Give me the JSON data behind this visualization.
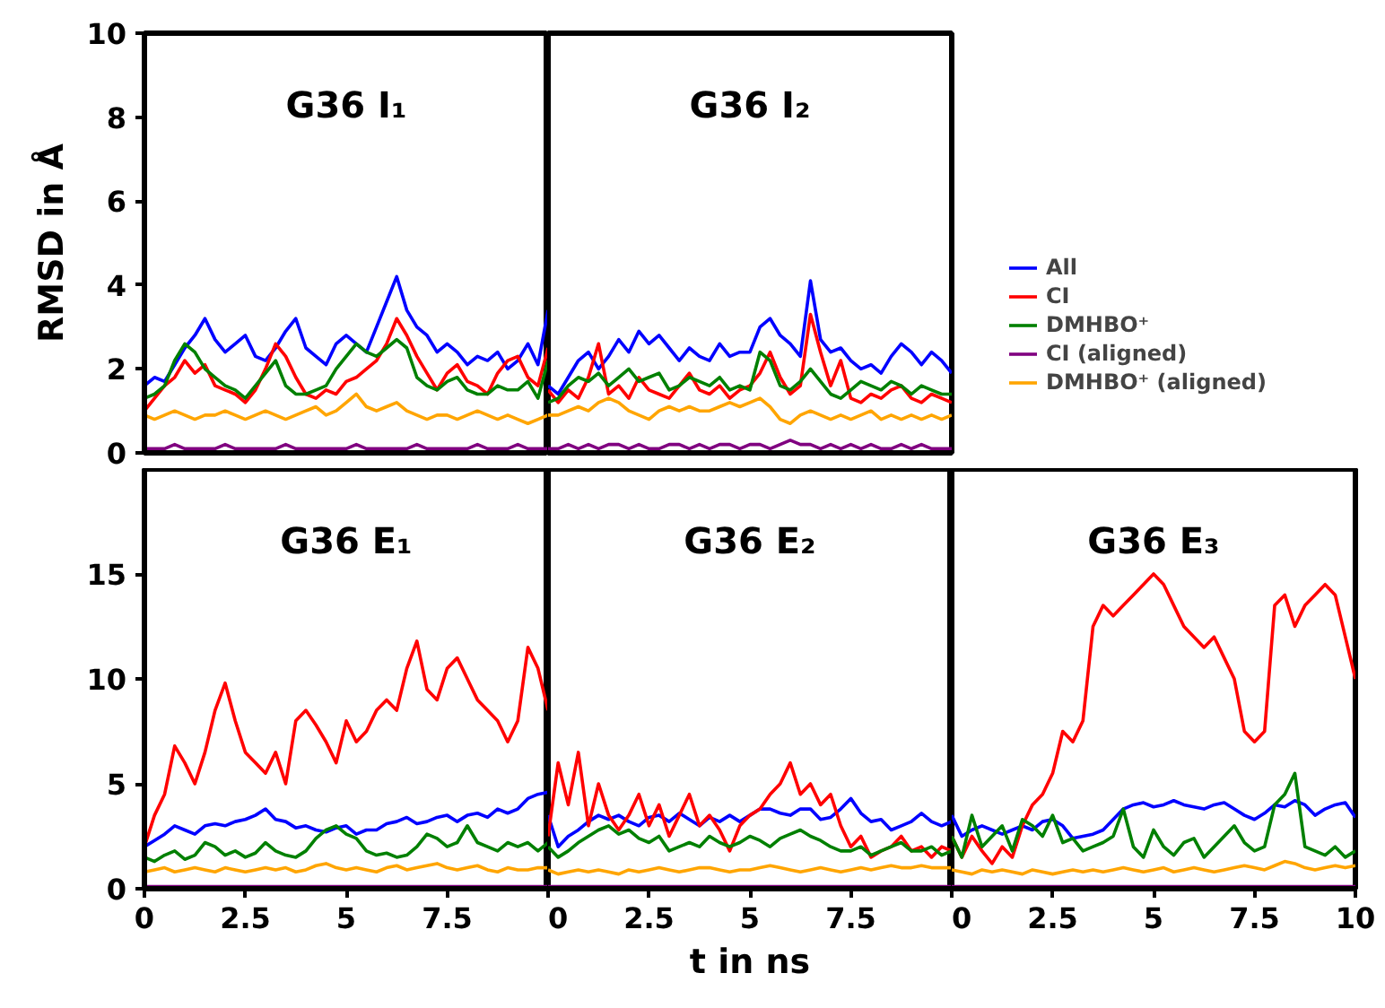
{
  "chart_data": [
    {
      "type": "line",
      "title": "G36 I₁",
      "ylabel": "RMSD in Å",
      "tick_labels": "y",
      "xlim": [
        0,
        10
      ],
      "ylim": [
        0,
        10
      ],
      "yticks": [
        0,
        2,
        4,
        6,
        8,
        10
      ],
      "x": [
        0,
        0.25,
        0.5,
        0.75,
        1,
        1.25,
        1.5,
        1.75,
        2,
        2.25,
        2.5,
        2.75,
        3,
        3.25,
        3.5,
        3.75,
        4,
        4.25,
        4.5,
        4.75,
        5,
        5.25,
        5.5,
        5.75,
        6,
        6.25,
        6.5,
        6.75,
        7,
        7.25,
        7.5,
        7.75,
        8,
        8.25,
        8.5,
        8.75,
        9,
        9.25,
        9.5,
        9.75,
        10
      ],
      "series": [
        {
          "color": "#0000ff",
          "values": [
            1.6,
            1.8,
            1.7,
            2.1,
            2.5,
            2.8,
            3.2,
            2.7,
            2.4,
            2.6,
            2.8,
            2.3,
            2.2,
            2.5,
            2.9,
            3.2,
            2.5,
            2.3,
            2.1,
            2.6,
            2.8,
            2.6,
            2.4,
            3.0,
            3.6,
            4.2,
            3.4,
            3.0,
            2.8,
            2.4,
            2.6,
            2.4,
            2.1,
            2.3,
            2.2,
            2.4,
            2.0,
            2.2,
            2.6,
            2.1,
            3.4
          ]
        },
        {
          "color": "#ff0000",
          "values": [
            1.0,
            1.3,
            1.6,
            1.8,
            2.2,
            1.9,
            2.1,
            1.6,
            1.5,
            1.4,
            1.2,
            1.5,
            2.0,
            2.6,
            2.3,
            1.8,
            1.4,
            1.3,
            1.5,
            1.4,
            1.7,
            1.8,
            2.0,
            2.2,
            2.6,
            3.2,
            2.8,
            2.3,
            1.9,
            1.5,
            1.9,
            2.1,
            1.7,
            1.6,
            1.4,
            1.9,
            2.2,
            2.3,
            1.8,
            1.6,
            2.5
          ]
        },
        {
          "color": "#008000",
          "values": [
            1.3,
            1.4,
            1.6,
            2.2,
            2.6,
            2.4,
            2.0,
            1.8,
            1.6,
            1.5,
            1.3,
            1.6,
            1.9,
            2.2,
            1.6,
            1.4,
            1.4,
            1.5,
            1.6,
            2.0,
            2.3,
            2.6,
            2.4,
            2.3,
            2.5,
            2.7,
            2.5,
            1.8,
            1.6,
            1.5,
            1.7,
            1.8,
            1.5,
            1.4,
            1.4,
            1.6,
            1.5,
            1.5,
            1.7,
            1.3,
            2.2
          ]
        },
        {
          "color": "#800080",
          "values": [
            0.1,
            0.1,
            0.1,
            0.2,
            0.1,
            0.1,
            0.1,
            0.1,
            0.2,
            0.1,
            0.1,
            0.1,
            0.1,
            0.1,
            0.2,
            0.1,
            0.1,
            0.1,
            0.1,
            0.1,
            0.1,
            0.2,
            0.1,
            0.1,
            0.1,
            0.1,
            0.1,
            0.2,
            0.1,
            0.1,
            0.1,
            0.1,
            0.1,
            0.2,
            0.1,
            0.1,
            0.1,
            0.2,
            0.1,
            0.1,
            0.1
          ]
        },
        {
          "color": "#ffa500",
          "values": [
            0.9,
            0.8,
            0.9,
            1.0,
            0.9,
            0.8,
            0.9,
            0.9,
            1.0,
            0.9,
            0.8,
            0.9,
            1.0,
            0.9,
            0.8,
            0.9,
            1.0,
            1.1,
            0.9,
            1.0,
            1.2,
            1.4,
            1.1,
            1.0,
            1.1,
            1.2,
            1.0,
            0.9,
            0.8,
            0.9,
            0.9,
            0.8,
            0.9,
            1.0,
            0.9,
            0.8,
            0.9,
            0.8,
            0.7,
            0.8,
            0.9
          ]
        }
      ]
    },
    {
      "type": "line",
      "title": "G36 I₂",
      "tick_labels": false,
      "legend": "right",
      "xlim": [
        0,
        10
      ],
      "ylim": [
        0,
        10
      ],
      "x": [
        0,
        0.25,
        0.5,
        0.75,
        1,
        1.25,
        1.5,
        1.75,
        2,
        2.25,
        2.5,
        2.75,
        3,
        3.25,
        3.5,
        3.75,
        4,
        4.25,
        4.5,
        4.75,
        5,
        5.25,
        5.5,
        5.75,
        6,
        6.25,
        6.5,
        6.75,
        7,
        7.25,
        7.5,
        7.75,
        8,
        8.25,
        8.5,
        8.75,
        9,
        9.25,
        9.5,
        9.75,
        10
      ],
      "series": [
        {
          "name": "All",
          "color": "#0000ff",
          "values": [
            1.6,
            1.4,
            1.8,
            2.2,
            2.4,
            2.0,
            2.3,
            2.7,
            2.4,
            2.9,
            2.6,
            2.8,
            2.5,
            2.2,
            2.5,
            2.3,
            2.2,
            2.6,
            2.3,
            2.4,
            2.4,
            3.0,
            3.2,
            2.8,
            2.6,
            2.3,
            4.1,
            2.7,
            2.4,
            2.5,
            2.2,
            2.0,
            2.1,
            1.9,
            2.3,
            2.6,
            2.4,
            2.1,
            2.4,
            2.2,
            1.9
          ]
        },
        {
          "name": "CI",
          "color": "#ff0000",
          "values": [
            1.5,
            1.2,
            1.5,
            1.3,
            1.8,
            2.6,
            1.4,
            1.6,
            1.3,
            1.8,
            1.5,
            1.4,
            1.3,
            1.6,
            1.9,
            1.5,
            1.4,
            1.6,
            1.3,
            1.5,
            1.6,
            1.9,
            2.4,
            1.8,
            1.4,
            1.6,
            3.3,
            2.4,
            1.6,
            2.2,
            1.3,
            1.2,
            1.4,
            1.3,
            1.5,
            1.6,
            1.3,
            1.2,
            1.4,
            1.3,
            1.2
          ]
        },
        {
          "name": "DMHBO⁺",
          "color": "#008000",
          "values": [
            1.2,
            1.3,
            1.6,
            1.8,
            1.7,
            1.9,
            1.6,
            1.8,
            2.0,
            1.7,
            1.8,
            1.9,
            1.5,
            1.6,
            1.8,
            1.7,
            1.6,
            1.8,
            1.5,
            1.6,
            1.5,
            2.4,
            2.2,
            1.6,
            1.5,
            1.7,
            2.0,
            1.7,
            1.4,
            1.3,
            1.5,
            1.7,
            1.6,
            1.5,
            1.7,
            1.6,
            1.4,
            1.6,
            1.5,
            1.4,
            1.4
          ]
        },
        {
          "name": "CI (aligned)",
          "color": "#800080",
          "values": [
            0.1,
            0.1,
            0.2,
            0.1,
            0.2,
            0.1,
            0.2,
            0.2,
            0.1,
            0.2,
            0.1,
            0.1,
            0.2,
            0.2,
            0.1,
            0.2,
            0.1,
            0.2,
            0.2,
            0.1,
            0.2,
            0.2,
            0.1,
            0.2,
            0.3,
            0.2,
            0.2,
            0.1,
            0.2,
            0.1,
            0.2,
            0.1,
            0.2,
            0.1,
            0.1,
            0.2,
            0.1,
            0.2,
            0.1,
            0.1,
            0.1
          ]
        },
        {
          "name": "DMHBO⁺ (aligned)",
          "color": "#ffa500",
          "values": [
            0.9,
            0.9,
            1.0,
            1.1,
            1.0,
            1.2,
            1.3,
            1.2,
            1.0,
            0.9,
            0.8,
            1.0,
            1.1,
            1.0,
            1.1,
            1.0,
            1.0,
            1.1,
            1.2,
            1.1,
            1.2,
            1.3,
            1.1,
            0.8,
            0.7,
            0.9,
            1.0,
            0.9,
            0.8,
            0.9,
            0.8,
            0.9,
            1.0,
            0.8,
            0.9,
            0.8,
            0.9,
            0.8,
            0.9,
            0.8,
            0.9
          ]
        }
      ]
    },
    {
      "type": "line",
      "title": "G36 E₁",
      "xlim": [
        0,
        10
      ],
      "ylim": [
        0,
        20
      ],
      "xticks": [
        0,
        2.5,
        5,
        7.5,
        {
          "value": 10,
          "label": null
        }
      ],
      "yticks": [
        0,
        5,
        10,
        15
      ],
      "x": [
        0,
        0.25,
        0.5,
        0.75,
        1,
        1.25,
        1.5,
        1.75,
        2,
        2.25,
        2.5,
        2.75,
        3,
        3.25,
        3.5,
        3.75,
        4,
        4.25,
        4.5,
        4.75,
        5,
        5.25,
        5.5,
        5.75,
        6,
        6.25,
        6.5,
        6.75,
        7,
        7.25,
        7.5,
        7.75,
        8,
        8.25,
        8.5,
        8.75,
        9,
        9.25,
        9.5,
        9.75,
        10
      ],
      "series": [
        {
          "color": "#0000ff",
          "values": [
            2.0,
            2.3,
            2.6,
            3.0,
            2.8,
            2.6,
            3.0,
            3.1,
            3.0,
            3.2,
            3.3,
            3.5,
            3.8,
            3.3,
            3.2,
            2.9,
            3.0,
            2.8,
            2.7,
            2.9,
            3.0,
            2.6,
            2.8,
            2.8,
            3.1,
            3.2,
            3.4,
            3.1,
            3.2,
            3.4,
            3.5,
            3.2,
            3.5,
            3.6,
            3.4,
            3.8,
            3.6,
            3.8,
            4.3,
            4.5,
            4.6
          ]
        },
        {
          "color": "#ff0000",
          "values": [
            2.0,
            3.5,
            4.5,
            6.8,
            6.0,
            5.0,
            6.5,
            8.5,
            9.8,
            8.0,
            6.5,
            6.0,
            5.5,
            6.5,
            5.0,
            8.0,
            8.5,
            7.8,
            7.0,
            6.0,
            8.0,
            7.0,
            7.5,
            8.5,
            9.0,
            8.5,
            10.5,
            11.8,
            9.5,
            9.0,
            10.5,
            11.0,
            10.0,
            9.0,
            8.5,
            8.0,
            7.0,
            8.0,
            11.5,
            10.5,
            8.5
          ]
        },
        {
          "color": "#008000",
          "values": [
            1.5,
            1.3,
            1.6,
            1.8,
            1.4,
            1.6,
            2.2,
            2.0,
            1.6,
            1.8,
            1.5,
            1.7,
            2.2,
            1.8,
            1.6,
            1.5,
            1.8,
            2.4,
            2.8,
            3.0,
            2.6,
            2.4,
            1.8,
            1.6,
            1.7,
            1.5,
            1.6,
            2.0,
            2.6,
            2.4,
            2.0,
            2.2,
            3.0,
            2.2,
            2.0,
            1.8,
            2.2,
            2.0,
            2.2,
            1.8,
            2.2
          ]
        },
        {
          "color": "#800080",
          "values": [
            0.1,
            0.1,
            0.1,
            0.1,
            0.1,
            0.1,
            0.1,
            0.1,
            0.1,
            0.1,
            0.1,
            0.1,
            0.1,
            0.1,
            0.1,
            0.1,
            0.1,
            0.1,
            0.1,
            0.1,
            0.1,
            0.1,
            0.1,
            0.1,
            0.1,
            0.1,
            0.1,
            0.1,
            0.1,
            0.1,
            0.1,
            0.1,
            0.1,
            0.1,
            0.1,
            0.1,
            0.1,
            0.1,
            0.1,
            0.1,
            0.1
          ]
        },
        {
          "color": "#ffa500",
          "values": [
            0.8,
            0.9,
            1.0,
            0.8,
            0.9,
            1.0,
            0.9,
            0.8,
            1.0,
            0.9,
            0.8,
            0.9,
            1.0,
            0.9,
            1.0,
            0.8,
            0.9,
            1.1,
            1.2,
            1.0,
            0.9,
            1.0,
            0.9,
            0.8,
            1.0,
            1.1,
            0.9,
            1.0,
            1.1,
            1.2,
            1.0,
            0.9,
            1.0,
            1.1,
            0.9,
            0.8,
            1.0,
            0.9,
            0.9,
            1.0,
            1.0
          ]
        }
      ]
    },
    {
      "type": "line",
      "title": "G36 E₂",
      "xlabel": "t in ns",
      "tick_labels": "x",
      "xlim": [
        0,
        10
      ],
      "ylim": [
        0,
        20
      ],
      "xticks": [
        0,
        2.5,
        5,
        7.5,
        {
          "value": 10,
          "label": null
        }
      ],
      "x": [
        0,
        0.25,
        0.5,
        0.75,
        1,
        1.25,
        1.5,
        1.75,
        2,
        2.25,
        2.5,
        2.75,
        3,
        3.25,
        3.5,
        3.75,
        4,
        4.25,
        4.5,
        4.75,
        5,
        5.25,
        5.5,
        5.75,
        6,
        6.25,
        6.5,
        6.75,
        7,
        7.25,
        7.5,
        7.75,
        8,
        8.25,
        8.5,
        8.75,
        9,
        9.25,
        9.5,
        9.75,
        10
      ],
      "series": [
        {
          "color": "#0000ff",
          "values": [
            3.5,
            2.0,
            2.5,
            2.8,
            3.2,
            3.5,
            3.3,
            3.5,
            3.2,
            3.0,
            3.4,
            3.5,
            3.2,
            3.6,
            3.3,
            3.0,
            3.4,
            3.2,
            3.5,
            3.2,
            3.5,
            3.8,
            3.8,
            3.6,
            3.5,
            3.8,
            3.8,
            3.3,
            3.4,
            3.8,
            4.3,
            3.6,
            3.2,
            3.3,
            2.8,
            3.0,
            3.2,
            3.6,
            3.2,
            3.0,
            3.2
          ]
        },
        {
          "color": "#ff0000",
          "values": [
            2.5,
            6.0,
            4.0,
            6.5,
            3.0,
            5.0,
            3.5,
            2.8,
            3.5,
            4.5,
            3.0,
            4.0,
            2.5,
            3.5,
            4.5,
            3.0,
            3.5,
            2.8,
            1.8,
            3.0,
            3.5,
            3.8,
            4.5,
            5.0,
            6.0,
            4.5,
            5.0,
            4.0,
            4.5,
            3.0,
            2.0,
            2.5,
            1.5,
            1.8,
            2.0,
            2.5,
            1.8,
            2.0,
            1.5,
            2.0,
            1.8
          ]
        },
        {
          "color": "#008000",
          "values": [
            2.0,
            1.5,
            1.8,
            2.2,
            2.5,
            2.8,
            3.0,
            2.6,
            2.8,
            2.4,
            2.2,
            2.5,
            1.8,
            2.0,
            2.2,
            2.0,
            2.5,
            2.2,
            2.0,
            2.2,
            2.5,
            2.3,
            2.0,
            2.4,
            2.6,
            2.8,
            2.5,
            2.3,
            2.0,
            1.8,
            1.8,
            2.0,
            1.6,
            1.8,
            2.0,
            2.2,
            1.8,
            1.8,
            2.0,
            1.6,
            1.8
          ]
        },
        {
          "color": "#800080",
          "values": [
            0.1,
            0.1,
            0.1,
            0.1,
            0.1,
            0.1,
            0.1,
            0.1,
            0.1,
            0.1,
            0.1,
            0.1,
            0.1,
            0.1,
            0.1,
            0.1,
            0.1,
            0.1,
            0.1,
            0.1,
            0.1,
            0.1,
            0.1,
            0.1,
            0.1,
            0.1,
            0.1,
            0.1,
            0.1,
            0.1,
            0.1,
            0.1,
            0.1,
            0.1,
            0.1,
            0.1,
            0.1,
            0.1,
            0.1,
            0.1,
            0.1
          ]
        },
        {
          "color": "#ffa500",
          "values": [
            0.9,
            0.7,
            0.8,
            0.9,
            0.8,
            0.9,
            0.8,
            0.7,
            0.9,
            0.8,
            0.9,
            1.0,
            0.9,
            0.8,
            0.9,
            1.0,
            1.0,
            0.9,
            0.8,
            0.9,
            0.9,
            1.0,
            1.1,
            1.0,
            0.9,
            0.8,
            0.9,
            1.0,
            0.9,
            0.8,
            0.9,
            1.0,
            0.9,
            1.0,
            1.1,
            1.0,
            1.0,
            1.1,
            1.0,
            1.0,
            1.0
          ]
        }
      ]
    },
    {
      "type": "line",
      "title": "G36 E₃",
      "tick_labels": "x",
      "xlim": [
        0,
        10
      ],
      "ylim": [
        0,
        20
      ],
      "xticks": [
        0,
        2.5,
        5,
        7.5,
        10
      ],
      "x": [
        0,
        0.25,
        0.5,
        0.75,
        1,
        1.25,
        1.5,
        1.75,
        2,
        2.25,
        2.5,
        2.75,
        3,
        3.25,
        3.5,
        3.75,
        4,
        4.25,
        4.5,
        4.75,
        5,
        5.25,
        5.5,
        5.75,
        6,
        6.25,
        6.5,
        6.75,
        7,
        7.25,
        7.5,
        7.75,
        8,
        8.25,
        8.5,
        8.75,
        9,
        9.25,
        9.5,
        9.75,
        10
      ],
      "series": [
        {
          "color": "#0000ff",
          "values": [
            3.5,
            2.5,
            2.8,
            3.0,
            2.8,
            2.6,
            2.8,
            3.0,
            2.8,
            3.2,
            3.3,
            3.0,
            2.4,
            2.5,
            2.6,
            2.8,
            3.3,
            3.8,
            4.0,
            4.1,
            3.9,
            4.0,
            4.2,
            4.0,
            3.9,
            3.8,
            4.0,
            4.1,
            3.8,
            3.5,
            3.3,
            3.6,
            4.0,
            3.9,
            4.2,
            4.0,
            3.5,
            3.8,
            4.0,
            4.1,
            3.4
          ]
        },
        {
          "color": "#ff0000",
          "values": [
            2.5,
            1.5,
            2.5,
            1.8,
            1.2,
            2.0,
            1.5,
            3.0,
            4.0,
            4.5,
            5.5,
            7.5,
            7.0,
            8.0,
            12.5,
            13.5,
            13.0,
            13.5,
            14.0,
            14.5,
            15.0,
            14.5,
            13.5,
            12.5,
            12.0,
            11.5,
            12.0,
            11.0,
            10.0,
            7.5,
            7.0,
            7.5,
            13.5,
            14.0,
            12.5,
            13.5,
            14.0,
            14.5,
            14.0,
            12.0,
            10.0
          ]
        },
        {
          "color": "#008000",
          "values": [
            2.5,
            1.5,
            3.5,
            2.0,
            2.5,
            3.0,
            1.8,
            3.3,
            3.0,
            2.5,
            3.5,
            2.2,
            2.4,
            1.8,
            2.0,
            2.2,
            2.5,
            3.8,
            2.0,
            1.5,
            2.8,
            2.0,
            1.6,
            2.2,
            2.4,
            1.5,
            2.0,
            2.5,
            3.0,
            2.2,
            1.8,
            2.0,
            4.0,
            4.5,
            5.5,
            2.0,
            1.8,
            1.6,
            2.0,
            1.5,
            1.8
          ]
        },
        {
          "color": "#800080",
          "values": [
            0.1,
            0.1,
            0.1,
            0.1,
            0.1,
            0.1,
            0.1,
            0.1,
            0.1,
            0.1,
            0.1,
            0.1,
            0.1,
            0.1,
            0.1,
            0.1,
            0.1,
            0.1,
            0.1,
            0.1,
            0.1,
            0.1,
            0.1,
            0.1,
            0.1,
            0.1,
            0.1,
            0.1,
            0.1,
            0.1,
            0.1,
            0.1,
            0.1,
            0.1,
            0.1,
            0.1,
            0.1,
            0.1,
            0.1,
            0.1,
            0.1
          ]
        },
        {
          "color": "#ffa500",
          "values": [
            0.9,
            0.8,
            0.7,
            0.9,
            0.8,
            0.9,
            0.8,
            0.7,
            0.9,
            0.8,
            0.7,
            0.8,
            0.9,
            0.8,
            0.9,
            0.8,
            0.9,
            1.0,
            0.9,
            0.8,
            0.9,
            1.0,
            0.8,
            0.9,
            1.0,
            0.9,
            0.8,
            0.9,
            1.0,
            1.1,
            1.0,
            0.9,
            1.1,
            1.3,
            1.2,
            1.0,
            0.9,
            1.0,
            1.1,
            1.0,
            1.1
          ]
        }
      ]
    }
  ]
}
